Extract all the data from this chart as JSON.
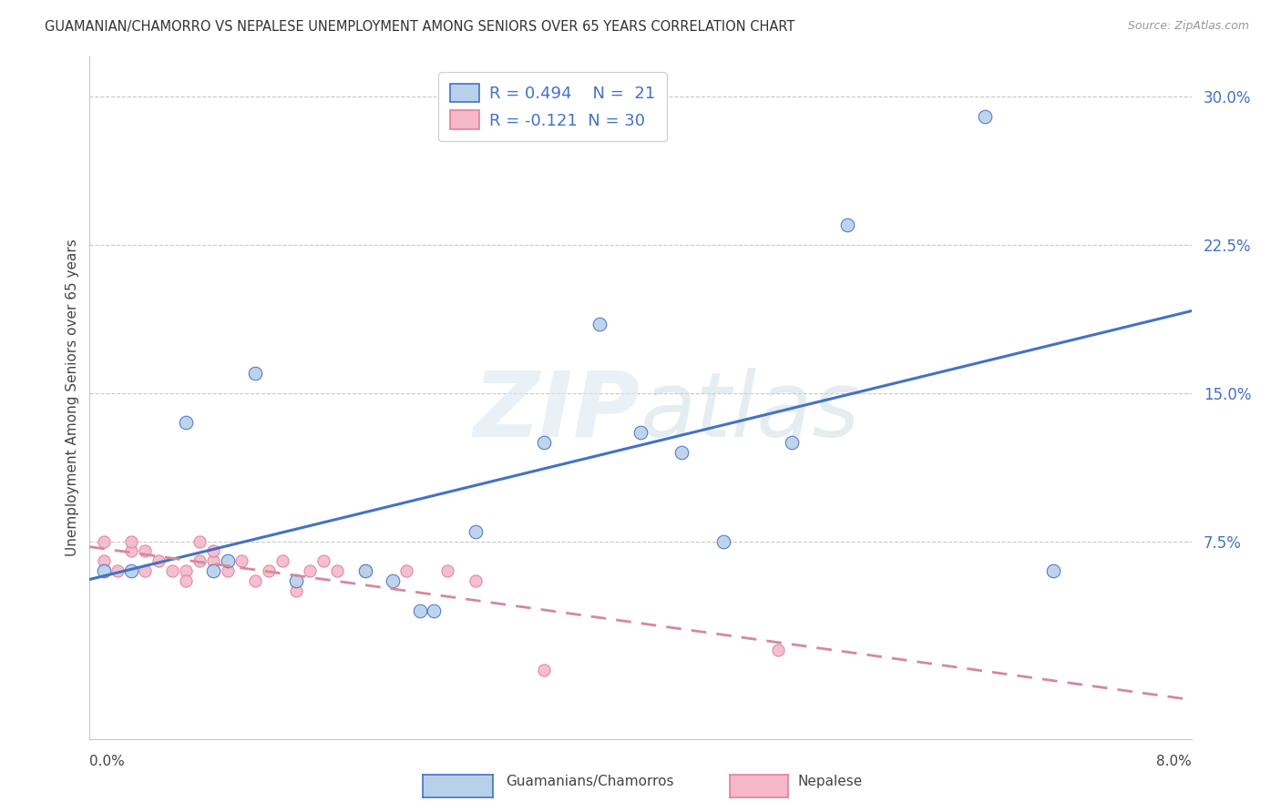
{
  "title": "GUAMANIAN/CHAMORRO VS NEPALESE UNEMPLOYMENT AMONG SENIORS OVER 65 YEARS CORRELATION CHART",
  "source": "Source: ZipAtlas.com",
  "ylabel": "Unemployment Among Seniors over 65 years",
  "yticks": [
    0.0,
    0.075,
    0.15,
    0.225,
    0.3
  ],
  "ytick_labels": [
    "",
    "7.5%",
    "15.0%",
    "22.5%",
    "30.0%"
  ],
  "xlim": [
    0.0,
    0.08
  ],
  "ylim": [
    -0.025,
    0.32
  ],
  "watermark": "ZIPatlas",
  "legend_r1": "R = 0.494",
  "legend_n1": "N =  21",
  "legend_r2": "R = -0.121",
  "legend_n2": "N = 30",
  "guamanian_color": "#b8d0ea",
  "nepalese_color": "#f4b8c8",
  "trendline_blue": "#4472c4",
  "trendline_pink": "#d4899a",
  "guamanian_x": [
    0.001,
    0.003,
    0.007,
    0.009,
    0.01,
    0.012,
    0.015,
    0.02,
    0.022,
    0.024,
    0.025,
    0.028,
    0.033,
    0.037,
    0.04,
    0.043,
    0.046,
    0.051,
    0.055,
    0.065,
    0.07
  ],
  "guamanian_y": [
    0.06,
    0.06,
    0.135,
    0.06,
    0.065,
    0.16,
    0.055,
    0.06,
    0.055,
    0.04,
    0.04,
    0.08,
    0.125,
    0.185,
    0.13,
    0.12,
    0.075,
    0.125,
    0.235,
    0.29,
    0.06
  ],
  "nepalese_x": [
    0.001,
    0.001,
    0.002,
    0.003,
    0.003,
    0.004,
    0.004,
    0.005,
    0.006,
    0.007,
    0.007,
    0.008,
    0.008,
    0.009,
    0.009,
    0.01,
    0.011,
    0.012,
    0.013,
    0.014,
    0.015,
    0.016,
    0.017,
    0.018,
    0.02,
    0.023,
    0.026,
    0.028,
    0.033,
    0.05
  ],
  "nepalese_y": [
    0.065,
    0.075,
    0.06,
    0.07,
    0.075,
    0.06,
    0.07,
    0.065,
    0.06,
    0.06,
    0.055,
    0.065,
    0.075,
    0.065,
    0.07,
    0.06,
    0.065,
    0.055,
    0.06,
    0.065,
    0.05,
    0.06,
    0.065,
    0.06,
    0.06,
    0.06,
    0.06,
    0.055,
    0.01,
    0.02
  ],
  "background_color": "#ffffff",
  "grid_color": "#c8c8c8"
}
